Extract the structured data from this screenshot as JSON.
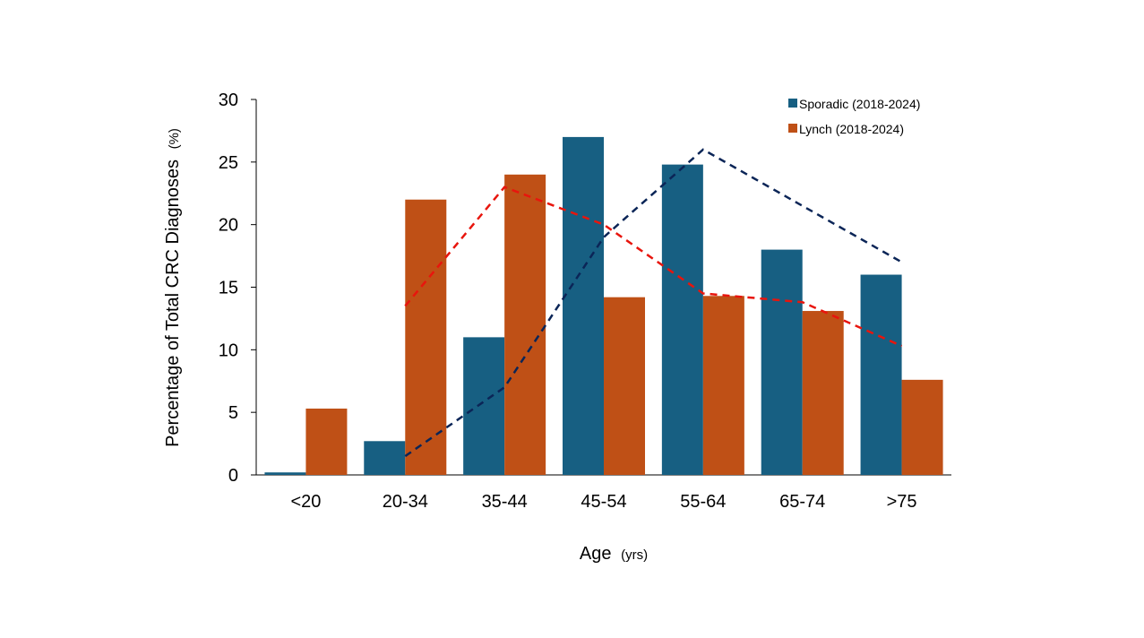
{
  "chart_data": {
    "type": "bar",
    "categories": [
      "<20",
      "20-34",
      "35-44",
      "45-54",
      "55-64",
      "65-74",
      ">75"
    ],
    "series": [
      {
        "name": "Sporadic (2018-2024)",
        "values": [
          0.2,
          2.7,
          11,
          27,
          24.8,
          18,
          16
        ],
        "color": "#175f82"
      },
      {
        "name": "Lynch (2018-2024)",
        "values": [
          5.3,
          22,
          24,
          14.2,
          14.3,
          13.1,
          7.6
        ],
        "color": "#bf5016"
      }
    ],
    "trend_lines": [
      {
        "series": "Sporadic (2018-2024)",
        "style": "dashed",
        "color": "#0b2557",
        "points": [
          [
            1,
            1.5
          ],
          [
            2,
            7
          ],
          [
            3,
            19
          ],
          [
            4,
            26
          ],
          [
            6,
            17
          ]
        ]
      },
      {
        "series": "Lynch (2018-2024)",
        "style": "dashed",
        "color": "#e8150d",
        "points": [
          [
            1,
            13.5
          ],
          [
            2,
            23
          ],
          [
            3,
            20
          ],
          [
            4,
            14.5
          ],
          [
            5,
            13.8
          ],
          [
            6,
            10.3
          ]
        ]
      }
    ],
    "ylim": [
      0,
      30
    ],
    "yticks": [
      0,
      5,
      10,
      15,
      20,
      25,
      30
    ],
    "ylabel": {
      "main": "Percentage of Total CRC Diagnoses",
      "unit": "(%)"
    },
    "xlabel": {
      "main": "Age",
      "unit": "(yrs)"
    },
    "legend_position": "top-right",
    "grid": false
  }
}
